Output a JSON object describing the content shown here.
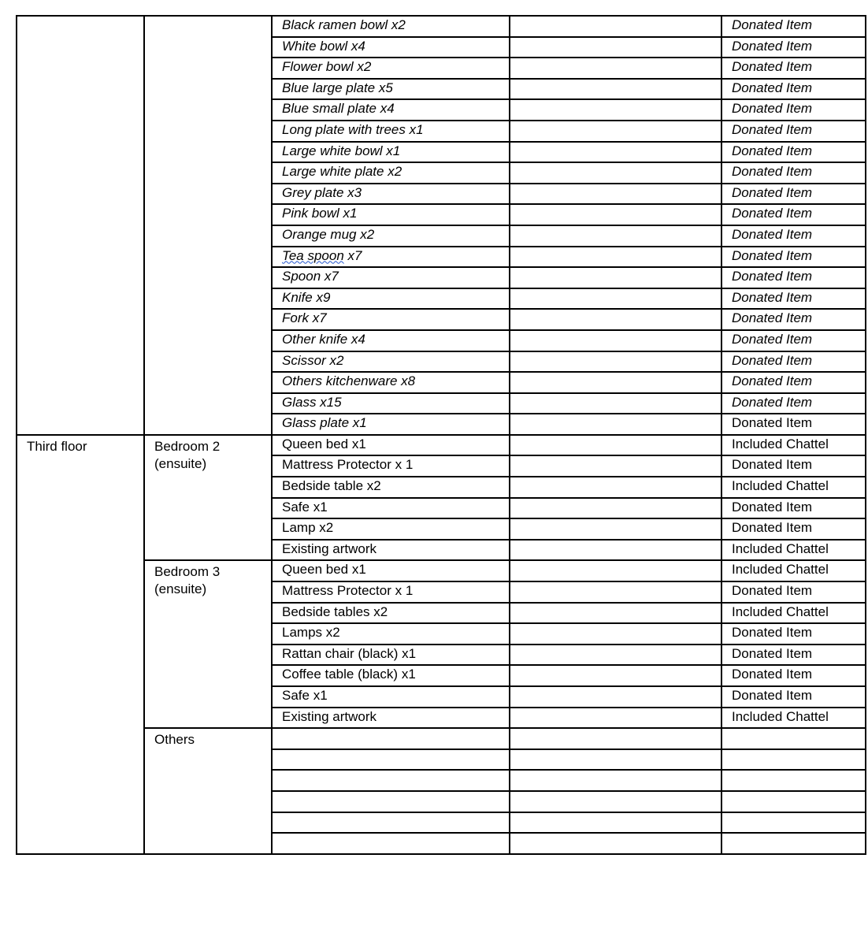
{
  "table": {
    "groups": [
      {
        "floor": "",
        "room": "",
        "rows": [
          {
            "item": "Black ramen bowl x2",
            "status": "Donated Item",
            "italic": true,
            "status_italic": true
          },
          {
            "item": "White bowl x4",
            "status": "Donated Item",
            "italic": true,
            "status_italic": true
          },
          {
            "item": "Flower bowl x2",
            "status": "Donated Item",
            "italic": true,
            "status_italic": true
          },
          {
            "item": "Blue large plate x5",
            "status": "Donated Item",
            "italic": true,
            "status_italic": true
          },
          {
            "item": "Blue small plate x4",
            "status": "Donated Item",
            "italic": true,
            "status_italic": true
          },
          {
            "item": "Long plate with trees x1",
            "status": "Donated Item",
            "italic": true,
            "status_italic": true
          },
          {
            "item": "Large white bowl x1",
            "status": "Donated Item",
            "italic": true,
            "status_italic": true
          },
          {
            "item": "Large white plate x2",
            "status": "Donated Item",
            "italic": true,
            "status_italic": true
          },
          {
            "item": "Grey plate x3",
            "status": "Donated Item",
            "italic": true,
            "status_italic": true
          },
          {
            "item": "Pink bowl x1",
            "status": "Donated Item",
            "italic": true,
            "status_italic": true
          },
          {
            "item": "Orange mug x2",
            "status": "Donated Item",
            "italic": true,
            "status_italic": true
          },
          {
            "item": "Tea spoon x7",
            "spell_flag": "Tea spoon",
            "status": "Donated Item",
            "italic": true,
            "status_italic": true
          },
          {
            "item": "Spoon x7",
            "status": "Donated Item",
            "italic": true,
            "status_italic": true
          },
          {
            "item": "Knife x9",
            "status": "Donated Item",
            "italic": true,
            "status_italic": true
          },
          {
            "item": "Fork x7",
            "status": "Donated Item",
            "italic": true,
            "status_italic": true
          },
          {
            "item": "Other knife x4",
            "status": "Donated Item",
            "italic": true,
            "status_italic": true
          },
          {
            "item": "Scissor x2",
            "status": "Donated Item",
            "italic": true,
            "status_italic": true
          },
          {
            "item": "Others kitchenware x8",
            "status": "Donated Item",
            "italic": true,
            "status_italic": true
          },
          {
            "item": "Glass x15",
            "status": "Donated Item",
            "italic": true,
            "status_italic": true
          },
          {
            "item": "Glass plate x1",
            "status": "Donated Item",
            "italic": true,
            "status_italic": false
          }
        ]
      },
      {
        "floor": "Third floor",
        "room": "Bedroom 2 (ensuite)",
        "rows": [
          {
            "item": "Queen bed x1",
            "status": "Included Chattel"
          },
          {
            "item": "Mattress Protector x 1",
            "status": "Donated Item"
          },
          {
            "item": "Bedside table x2",
            "status": "Included Chattel"
          },
          {
            "item": "Safe x1",
            "status": "Donated Item"
          },
          {
            "item": "Lamp x2",
            "status": "Donated Item"
          },
          {
            "item": "Existing artwork",
            "status": "Included Chattel"
          }
        ]
      },
      {
        "floor": "Third floor",
        "room": "Bedroom 3 (ensuite)",
        "rows": [
          {
            "item": "Queen bed x1",
            "status": "Included Chattel"
          },
          {
            "item": "Mattress Protector x 1",
            "status": "Donated Item"
          },
          {
            "item": "Bedside tables x2",
            "status": "Included Chattel"
          },
          {
            "item": "Lamps x2",
            "status": "Donated Item"
          },
          {
            "item": "Rattan chair (black) x1",
            "status": "Donated Item"
          },
          {
            "item": "Coffee table (black) x1",
            "status": "Donated Item"
          },
          {
            "item": "Safe x1",
            "status": "Donated Item"
          },
          {
            "item": "Existing artwork",
            "status": "Included Chattel"
          }
        ]
      },
      {
        "floor": "Third floor",
        "room": "Others",
        "rows": [
          {
            "item": "",
            "status": ""
          },
          {
            "item": "",
            "status": ""
          },
          {
            "item": "",
            "status": ""
          },
          {
            "item": "",
            "status": ""
          },
          {
            "item": "",
            "status": ""
          },
          {
            "item": "",
            "status": ""
          }
        ]
      }
    ]
  }
}
